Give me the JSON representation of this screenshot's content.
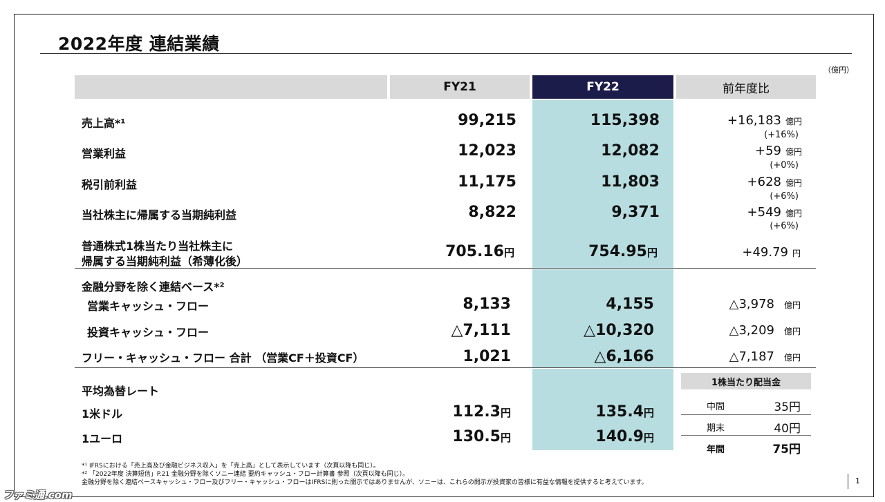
{
  "title": "2022年度 連結業績",
  "unit": "（億円）",
  "header": {
    "fy21": "FY21",
    "fy22": "FY22",
    "yoy": "前年度比"
  },
  "rows": {
    "sales": {
      "label": "売上高*¹",
      "fy21": "99,215",
      "fy22": "115,398",
      "yoy": "+16,183",
      "yoy_unit": "億円",
      "pct": "(+16%)"
    },
    "op": {
      "label": "営業利益",
      "fy21": "12,023",
      "fy22": "12,082",
      "yoy": "+59",
      "yoy_unit": "億円",
      "pct": "(+0%)"
    },
    "pretax": {
      "label": "税引前利益",
      "fy21": "11,175",
      "fy22": "11,803",
      "yoy": "+628",
      "yoy_unit": "億円",
      "pct": "(+6%)"
    },
    "net": {
      "label": "当社株主に帰属する当期純利益",
      "fy21": "8,822",
      "fy22": "9,371",
      "yoy": "+549",
      "yoy_unit": "億円",
      "pct": "(+6%)"
    },
    "eps": {
      "label1": "普通株式1株当たり当社株主に",
      "label2": "帰属する当期純利益（希薄化後）",
      "fy21": "705.16",
      "fy22": "754.95",
      "yen": "円",
      "yoy": "+49.79",
      "yoy_unit": "円"
    }
  },
  "cf": {
    "section": "金融分野を除く連結ベース*²",
    "op": {
      "label": "営業キャッシュ・フロー",
      "fy21": "8,133",
      "fy22": "4,155",
      "yoy": "△3,978",
      "yoy_unit": "億円"
    },
    "inv": {
      "label": "投資キャッシュ・フロー",
      "fy21": "△7,111",
      "fy22": "△10,320",
      "yoy": "△3,209",
      "yoy_unit": "億円"
    },
    "free": {
      "label": "フリー・キャッシュ・フロー 合計 （営業CF＋投資CF）",
      "fy21": "1,021",
      "fy22": "△6,166",
      "yoy": "△7,187",
      "yoy_unit": "億円"
    }
  },
  "fx": {
    "section": "平均為替レート",
    "usd": {
      "label": "1米ドル",
      "fy21": "112.3",
      "fy22": "135.4",
      "yen": "円"
    },
    "eur": {
      "label": "1ユーロ",
      "fy21": "130.5",
      "fy22": "140.9",
      "yen": "円"
    }
  },
  "dividend": {
    "title": "1株当たり配当金",
    "interim": {
      "label": "中間",
      "value": "35円"
    },
    "final": {
      "label": "期末",
      "value": "40円"
    },
    "annual": {
      "label": "年間",
      "value": "75円"
    }
  },
  "notes": {
    "n1": "*¹ IFRSにおける「売上高及び金融ビジネス収入」を「売上高」として表示しています（次頁以降も同じ）。",
    "n2": "*² 「2022年度 決算短信」P.21 金融分野を除くソニー連結 要約キャッシュ・フロー計算書 参照（次頁以降も同じ）。",
    "n3": "金融分野を除く連結ベースキャッシュ・フロー及びフリー・キャッシュ・フローはIFRSに則った開示ではありませんが、ソニーは、これらの開示が投資家の皆様に有益な情報を提供すると考えています。"
  },
  "page_number": "1",
  "watermark": "ファミ通.com"
}
